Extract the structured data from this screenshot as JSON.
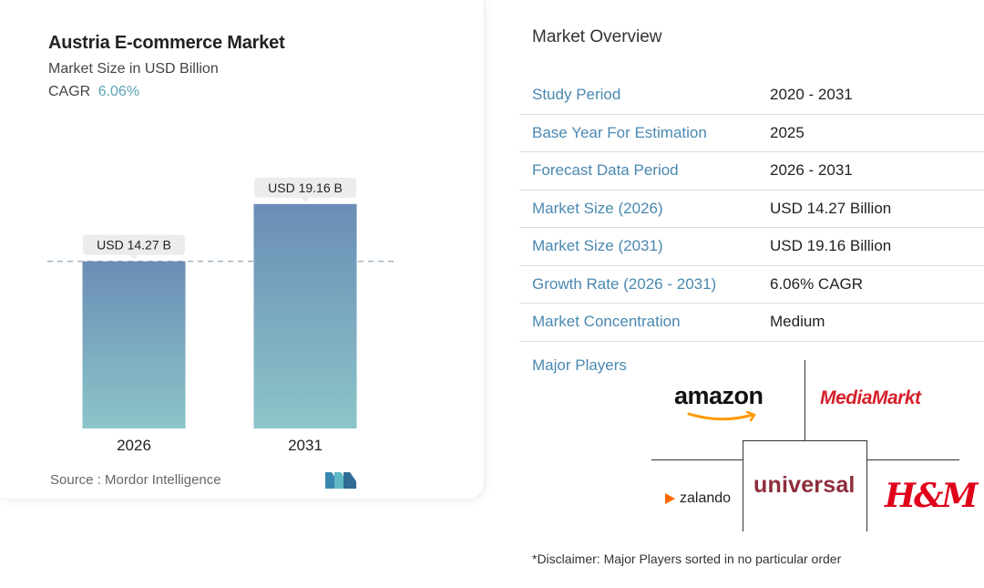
{
  "header": {
    "title": "Austria E-commerce Market",
    "subtitle": "Market Size in USD Billion",
    "cagr_label": "CAGR",
    "cagr_value": "6.06%"
  },
  "chart_data": {
    "type": "bar",
    "categories": [
      "2026",
      "2031"
    ],
    "values": [
      14.27,
      19.16
    ],
    "data_labels": [
      "USD 14.27 B",
      "USD 19.16 B"
    ],
    "title": "Austria E-commerce Market",
    "ylabel": "Market Size in USD Billion",
    "ylim": [
      0,
      20
    ],
    "colors": {
      "bar_top": "#6a8db5",
      "bar_bottom": "#8cc5c9",
      "label_bg": "#ececec",
      "reference_line": "#9fb4c4"
    },
    "grid": false,
    "reference_line_at": 14.27
  },
  "source": {
    "label": "Source :",
    "name": "Mordor Intelligence"
  },
  "overview": {
    "title": "Market Overview",
    "rows": [
      {
        "label": "Study Period",
        "value": "2020 - 2031"
      },
      {
        "label": "Base Year For Estimation",
        "value": "2025"
      },
      {
        "label": "Forecast Data Period",
        "value": "2026 - 2031"
      },
      {
        "label": "Market Size (2026)",
        "value": "USD 14.27 Billion"
      },
      {
        "label": "Market Size (2031)",
        "value": "USD 19.16 Billion"
      },
      {
        "label": "Growth Rate (2026 - 2031)",
        "value": "6.06% CAGR"
      },
      {
        "label": "Market Concentration",
        "value": "Medium"
      }
    ],
    "players_label": "Major Players",
    "players": [
      "amazon",
      "MediaMarkt",
      "zalando",
      "universal",
      "H&M"
    ]
  },
  "disclaimer": "*Disclaimer: Major Players sorted in no particular order",
  "colors": {
    "accent_label": "#4a88b0",
    "cagr": "#5ba3b5",
    "universal": "#8e2d3c",
    "mediamarkt": "#d5202b",
    "hm": "#e1001a",
    "zalando": "#ff6900"
  }
}
